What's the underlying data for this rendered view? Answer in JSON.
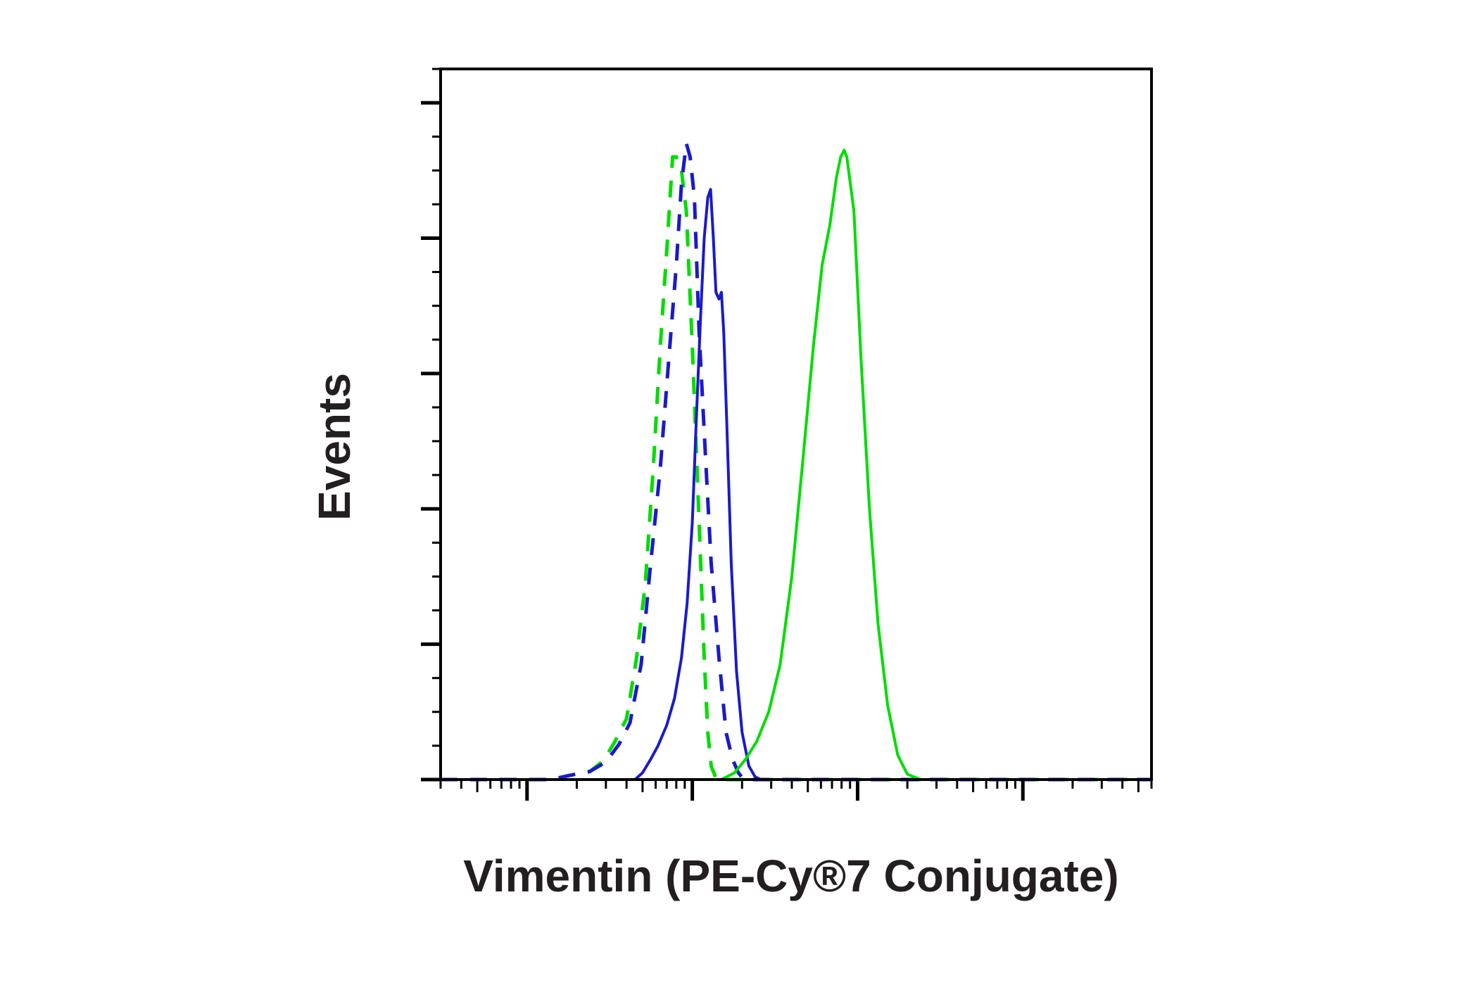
{
  "chart_data": {
    "type": "line",
    "title": "",
    "xlabel": "Vimentin (PE-Cy®7 Conjugate)",
    "ylabel": "Events",
    "x_scale": "log",
    "xlim": [
      3,
      60000
    ],
    "ylim": [
      0,
      5.25
    ],
    "grid": false,
    "legend": "none",
    "series": [
      {
        "color": "#00dd00",
        "style": "dashed",
        "points": [
          [
            3,
            0
          ],
          [
            14,
            0
          ],
          [
            18,
            0.03
          ],
          [
            24,
            0.06
          ],
          [
            29,
            0.14
          ],
          [
            34,
            0.28
          ],
          [
            40,
            0.45
          ],
          [
            46,
            0.9
          ],
          [
            52,
            1.45
          ],
          [
            58,
            2.3
          ],
          [
            64,
            3.2
          ],
          [
            70,
            3.9
          ],
          [
            76,
            4.6
          ],
          [
            80,
            4.6
          ],
          [
            86,
            4.5
          ],
          [
            92,
            4.2
          ],
          [
            100,
            3.2
          ],
          [
            110,
            1.9
          ],
          [
            118,
            0.9
          ],
          [
            124,
            0.35
          ],
          [
            130,
            0.1
          ],
          [
            140,
            0
          ],
          [
            60000,
            0
          ]
        ]
      },
      {
        "color": "#1a1acc",
        "style": "dashed",
        "points": [
          [
            3,
            0
          ],
          [
            14,
            0
          ],
          [
            18,
            0.03
          ],
          [
            24,
            0.06
          ],
          [
            30,
            0.13
          ],
          [
            36,
            0.26
          ],
          [
            42,
            0.42
          ],
          [
            49,
            0.85
          ],
          [
            56,
            1.6
          ],
          [
            64,
            2.3
          ],
          [
            72,
            3.1
          ],
          [
            80,
            3.8
          ],
          [
            86,
            4.4
          ],
          [
            92,
            4.7
          ],
          [
            97,
            4.6
          ],
          [
            103,
            4.3
          ],
          [
            110,
            3.3
          ],
          [
            120,
            2.4
          ],
          [
            130,
            1.6
          ],
          [
            145,
            0.9
          ],
          [
            160,
            0.35
          ],
          [
            175,
            0.15
          ],
          [
            190,
            0.05
          ],
          [
            205,
            0
          ],
          [
            60000,
            0
          ]
        ]
      },
      {
        "color": "#1a1acc",
        "style": "solid",
        "points": [
          [
            3,
            0
          ],
          [
            45,
            0
          ],
          [
            50,
            0.05
          ],
          [
            56,
            0.15
          ],
          [
            62,
            0.25
          ],
          [
            70,
            0.4
          ],
          [
            78,
            0.6
          ],
          [
            86,
            0.9
          ],
          [
            93,
            1.3
          ],
          [
            100,
            1.9
          ],
          [
            106,
            2.7
          ],
          [
            112,
            3.4
          ],
          [
            118,
            4.0
          ],
          [
            124,
            4.3
          ],
          [
            129,
            4.36
          ],
          [
            134,
            4.0
          ],
          [
            139,
            3.6
          ],
          [
            145,
            3.55
          ],
          [
            150,
            3.6
          ],
          [
            155,
            3.3
          ],
          [
            162,
            2.6
          ],
          [
            172,
            1.6
          ],
          [
            185,
            0.8
          ],
          [
            200,
            0.35
          ],
          [
            220,
            0.1
          ],
          [
            240,
            0.02
          ],
          [
            260,
            0
          ],
          [
            60000,
            0
          ]
        ]
      },
      {
        "color": "#00dd00",
        "style": "solid",
        "points": [
          [
            3,
            0
          ],
          [
            150,
            0
          ],
          [
            180,
            0.05
          ],
          [
            210,
            0.15
          ],
          [
            245,
            0.28
          ],
          [
            290,
            0.5
          ],
          [
            340,
            0.85
          ],
          [
            400,
            1.5
          ],
          [
            470,
            2.4
          ],
          [
            540,
            3.2
          ],
          [
            610,
            3.8
          ],
          [
            680,
            4.1
          ],
          [
            745,
            4.45
          ],
          [
            790,
            4.6
          ],
          [
            830,
            4.65
          ],
          [
            860,
            4.6
          ],
          [
            900,
            4.42
          ],
          [
            950,
            4.2
          ],
          [
            1050,
            3.1
          ],
          [
            1180,
            2.0
          ],
          [
            1330,
            1.15
          ],
          [
            1520,
            0.55
          ],
          [
            1750,
            0.18
          ],
          [
            2000,
            0.04
          ],
          [
            2400,
            0
          ],
          [
            60000,
            0
          ]
        ]
      }
    ]
  }
}
